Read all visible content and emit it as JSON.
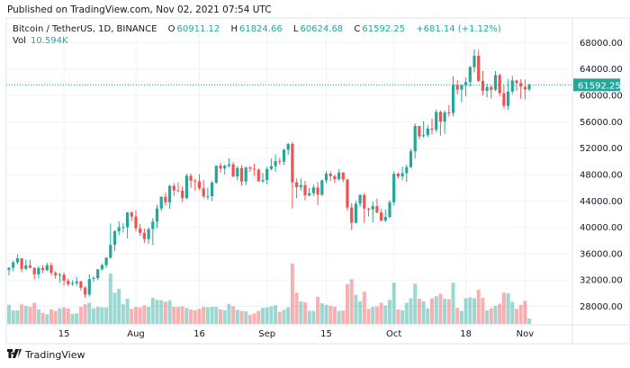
{
  "published": "Published on TradingView.com, Nov 02, 2021 07:54 UTC",
  "legend": {
    "symbol": "Bitcoin / TetherUS, 1D, BINANCE",
    "open_label": "O",
    "open": "60911.12",
    "high_label": "H",
    "high": "61824.66",
    "low_label": "L",
    "low": "60624.68",
    "close_label": "C",
    "close": "61592.25",
    "change": "+681.14 (+1.12%)",
    "vol_label": "Vol",
    "vol": "10.594K"
  },
  "last_price_label": "61592.25",
  "footer": {
    "logo_mark": "TV",
    "brand": "TradingView"
  },
  "colors": {
    "up": "#26a69a",
    "down": "#ef5350",
    "grid": "#f0f3fa",
    "text": "#131722"
  },
  "chart_data": {
    "type": "candlestick",
    "title": "Bitcoin / TetherUS, 1D, BINANCE",
    "ylim": [
      26000,
      70000
    ],
    "y_ticks": [
      "68000.00",
      "64000.00",
      "60000.00",
      "56000.00",
      "52000.00",
      "48000.00",
      "44000.00",
      "40000.00",
      "36000.00",
      "32000.00",
      "28000.00"
    ],
    "x_ticks": [
      {
        "label": "15",
        "date": "2021-07-15"
      },
      {
        "label": "Aug",
        "date": "2021-08-01"
      },
      {
        "label": "16",
        "date": "2021-08-16"
      },
      {
        "label": "Sep",
        "date": "2021-09-01"
      },
      {
        "label": "15",
        "date": "2021-09-15"
      },
      {
        "label": "Oct",
        "date": "2021-10-01"
      },
      {
        "label": "18",
        "date": "2021-10-18"
      },
      {
        "label": "Nov",
        "date": "2021-11-01"
      }
    ],
    "grid": true,
    "last_price": 61592.25,
    "columns": [
      "date",
      "open",
      "high",
      "low",
      "close",
      "volume_k"
    ],
    "ohlcv": [
      [
        "2021-07-02",
        33541,
        33963,
        32700,
        33855,
        38
      ],
      [
        "2021-07-03",
        33855,
        34950,
        33320,
        34688,
        27
      ],
      [
        "2021-07-04",
        34688,
        35950,
        34350,
        35287,
        27
      ],
      [
        "2021-07-05",
        35287,
        35290,
        33170,
        33690,
        39
      ],
      [
        "2021-07-06",
        33690,
        35120,
        33530,
        34220,
        36
      ],
      [
        "2021-07-07",
        34220,
        35060,
        33770,
        33862,
        34
      ],
      [
        "2021-07-08",
        33862,
        33920,
        32100,
        32875,
        42
      ],
      [
        "2021-07-09",
        32875,
        34100,
        32260,
        33815,
        29
      ],
      [
        "2021-07-10",
        33815,
        34250,
        33000,
        33502,
        22
      ],
      [
        "2021-07-11",
        33502,
        34600,
        33330,
        34259,
        19
      ],
      [
        "2021-07-12",
        34259,
        34680,
        32660,
        33086,
        29
      ],
      [
        "2021-07-13",
        33086,
        33340,
        32200,
        32729,
        26
      ],
      [
        "2021-07-14",
        32729,
        33100,
        31600,
        32820,
        31
      ],
      [
        "2021-07-15",
        32820,
        33180,
        31130,
        31880,
        33
      ],
      [
        "2021-07-16",
        31880,
        32250,
        31020,
        31383,
        31
      ],
      [
        "2021-07-17",
        31383,
        31950,
        31160,
        31520,
        20
      ],
      [
        "2021-07-18",
        31520,
        32440,
        31100,
        31778,
        21
      ],
      [
        "2021-07-19",
        31778,
        31900,
        30400,
        30839,
        34
      ],
      [
        "2021-07-20",
        30839,
        31060,
        29278,
        29790,
        39
      ],
      [
        "2021-07-21",
        29790,
        32860,
        29480,
        32144,
        42
      ],
      [
        "2021-07-22",
        32144,
        32580,
        31710,
        32287,
        31
      ],
      [
        "2021-07-23",
        32287,
        33650,
        31950,
        33634,
        34
      ],
      [
        "2021-07-24",
        33634,
        34500,
        33400,
        34258,
        33
      ],
      [
        "2021-07-25",
        34258,
        35400,
        33860,
        35404,
        33
      ],
      [
        "2021-07-26",
        35404,
        40550,
        35200,
        37337,
        100
      ],
      [
        "2021-07-27",
        37337,
        39540,
        36400,
        39406,
        62
      ],
      [
        "2021-07-28",
        39406,
        40900,
        38800,
        39995,
        70
      ],
      [
        "2021-07-29",
        39995,
        40640,
        39200,
        40008,
        39
      ],
      [
        "2021-07-30",
        40008,
        42320,
        38320,
        42235,
        50
      ],
      [
        "2021-07-31",
        42235,
        42420,
        41000,
        41626,
        30
      ],
      [
        "2021-08-01",
        41626,
        42600,
        39420,
        39846,
        34
      ],
      [
        "2021-08-02",
        39846,
        40480,
        38700,
        39147,
        33
      ],
      [
        "2021-08-03",
        39147,
        39800,
        37640,
        38207,
        37
      ],
      [
        "2021-08-04",
        38207,
        39950,
        37500,
        39723,
        34
      ],
      [
        "2021-08-05",
        39723,
        41400,
        37300,
        40867,
        52
      ],
      [
        "2021-08-06",
        40867,
        43400,
        39850,
        42848,
        48
      ],
      [
        "2021-08-07",
        42848,
        44700,
        42450,
        44614,
        47
      ],
      [
        "2021-08-08",
        44614,
        45300,
        43300,
        43792,
        44
      ],
      [
        "2021-08-09",
        43792,
        46450,
        42800,
        46285,
        47
      ],
      [
        "2021-08-10",
        46285,
        46700,
        44750,
        45593,
        34
      ],
      [
        "2021-08-11",
        45593,
        46800,
        45350,
        45555,
        34
      ],
      [
        "2021-08-12",
        45555,
        46220,
        43800,
        44429,
        35
      ],
      [
        "2021-08-13",
        44429,
        48150,
        44250,
        47810,
        32
      ],
      [
        "2021-08-14",
        47810,
        48150,
        45970,
        47068,
        29
      ],
      [
        "2021-08-15",
        47068,
        47390,
        45550,
        46974,
        27
      ],
      [
        "2021-08-16",
        46974,
        48050,
        45650,
        45901,
        30
      ],
      [
        "2021-08-17",
        45901,
        47160,
        44380,
        44696,
        34
      ],
      [
        "2021-08-18",
        44696,
        46000,
        44200,
        44705,
        33
      ],
      [
        "2021-08-19",
        44705,
        47030,
        43950,
        46760,
        34
      ],
      [
        "2021-08-20",
        46760,
        49380,
        46630,
        49339,
        34
      ],
      [
        "2021-08-21",
        49339,
        49760,
        48280,
        48905,
        29
      ],
      [
        "2021-08-22",
        48905,
        49500,
        48000,
        49321,
        27
      ],
      [
        "2021-08-23",
        49321,
        50500,
        49030,
        49546,
        40
      ],
      [
        "2021-08-24",
        49546,
        49880,
        47600,
        47706,
        35
      ],
      [
        "2021-08-25",
        47706,
        49300,
        47100,
        48960,
        28
      ],
      [
        "2021-08-26",
        48960,
        49400,
        46300,
        46942,
        26
      ],
      [
        "2021-08-27",
        46942,
        49200,
        46400,
        49058,
        25
      ],
      [
        "2021-08-28",
        49058,
        49300,
        48400,
        48897,
        18
      ],
      [
        "2021-08-29",
        48897,
        49650,
        47800,
        48767,
        21
      ],
      [
        "2021-08-30",
        48767,
        48900,
        46900,
        46970,
        26
      ],
      [
        "2021-08-31",
        46970,
        48250,
        46700,
        47166,
        32
      ],
      [
        "2021-09-01",
        47166,
        49150,
        46500,
        48847,
        33
      ],
      [
        "2021-09-02",
        48847,
        50400,
        48600,
        49270,
        35
      ],
      [
        "2021-09-03",
        49270,
        51050,
        48400,
        50025,
        37
      ],
      [
        "2021-09-04",
        50025,
        50550,
        49500,
        49944,
        24
      ],
      [
        "2021-09-05",
        49944,
        51900,
        49450,
        51753,
        28
      ],
      [
        "2021-09-06",
        51753,
        52800,
        50970,
        52633,
        33
      ],
      [
        "2021-09-07",
        52633,
        52950,
        42843,
        46811,
        120
      ],
      [
        "2021-09-08",
        46811,
        47400,
        44400,
        46091,
        62
      ],
      [
        "2021-09-09",
        46091,
        47400,
        45500,
        46391,
        45
      ],
      [
        "2021-09-10",
        46391,
        47050,
        44100,
        44843,
        43
      ],
      [
        "2021-09-11",
        44843,
        45990,
        44700,
        45161,
        26
      ],
      [
        "2021-09-12",
        45161,
        46460,
        44750,
        46026,
        26
      ],
      [
        "2021-09-13",
        46026,
        46850,
        43370,
        44940,
        54
      ],
      [
        "2021-09-14",
        44940,
        47250,
        44700,
        47111,
        41
      ],
      [
        "2021-09-15",
        47111,
        48480,
        46700,
        48121,
        38
      ],
      [
        "2021-09-16",
        48121,
        48500,
        47000,
        47737,
        36
      ],
      [
        "2021-09-17",
        47737,
        48000,
        46750,
        47299,
        34
      ],
      [
        "2021-09-18",
        47299,
        48800,
        47050,
        48292,
        26
      ],
      [
        "2021-09-19",
        48292,
        48370,
        46850,
        47241,
        27
      ],
      [
        "2021-09-20",
        47241,
        47350,
        42500,
        42996,
        79
      ],
      [
        "2021-09-21",
        42996,
        43650,
        39600,
        40693,
        89
      ],
      [
        "2021-09-22",
        40693,
        44000,
        40570,
        43574,
        58
      ],
      [
        "2021-09-23",
        43574,
        44980,
        43100,
        44895,
        45
      ],
      [
        "2021-09-24",
        44895,
        45200,
        40680,
        42839,
        64
      ],
      [
        "2021-09-25",
        42839,
        42970,
        41650,
        42716,
        30
      ],
      [
        "2021-09-26",
        42716,
        43930,
        40750,
        43208,
        34
      ],
      [
        "2021-09-27",
        43208,
        44350,
        42100,
        42235,
        35
      ],
      [
        "2021-09-28",
        42235,
        42780,
        40900,
        41034,
        42
      ],
      [
        "2021-09-29",
        41034,
        42700,
        40750,
        41564,
        37
      ],
      [
        "2021-09-30",
        41564,
        44100,
        41400,
        43790,
        48
      ],
      [
        "2021-10-01",
        43790,
        48500,
        43300,
        48116,
        82
      ],
      [
        "2021-10-02",
        48116,
        48350,
        47400,
        47711,
        29
      ],
      [
        "2021-10-03",
        47711,
        49200,
        47100,
        48199,
        27
      ],
      [
        "2021-10-04",
        48199,
        49500,
        46900,
        49112,
        42
      ],
      [
        "2021-10-05",
        49112,
        51880,
        49000,
        51514,
        51
      ],
      [
        "2021-10-06",
        51514,
        55750,
        50380,
        55361,
        80
      ],
      [
        "2021-10-07",
        55361,
        55330,
        53350,
        53805,
        50
      ],
      [
        "2021-10-08",
        53805,
        56100,
        53600,
        53967,
        45
      ],
      [
        "2021-10-09",
        53967,
        55480,
        53650,
        54968,
        31
      ],
      [
        "2021-10-10",
        54968,
        56500,
        54100,
        54771,
        51
      ],
      [
        "2021-10-11",
        54771,
        57840,
        54420,
        57484,
        55
      ],
      [
        "2021-10-12",
        57484,
        57700,
        53880,
        56041,
        60
      ],
      [
        "2021-10-13",
        56041,
        57700,
        54160,
        57401,
        50
      ],
      [
        "2021-10-14",
        57401,
        58550,
        56800,
        57321,
        49
      ],
      [
        "2021-10-15",
        57321,
        62900,
        56830,
        61593,
        82
      ],
      [
        "2021-10-16",
        61593,
        62350,
        60150,
        60875,
        32
      ],
      [
        "2021-10-17",
        60875,
        61700,
        58960,
        61528,
        26
      ],
      [
        "2021-10-18",
        61528,
        62700,
        59850,
        62009,
        51
      ],
      [
        "2021-10-19",
        62009,
        64500,
        61320,
        64280,
        53
      ],
      [
        "2021-10-20",
        64280,
        67000,
        63480,
        66002,
        51
      ],
      [
        "2021-10-21",
        66002,
        66900,
        62000,
        62193,
        68
      ],
      [
        "2021-10-22",
        62193,
        63730,
        60000,
        60688,
        52
      ],
      [
        "2021-10-23",
        60688,
        61750,
        59700,
        61286,
        27
      ],
      [
        "2021-10-24",
        61286,
        61500,
        59500,
        60852,
        31
      ],
      [
        "2021-10-25",
        60852,
        63700,
        60650,
        63078,
        36
      ],
      [
        "2021-10-26",
        63078,
        63300,
        59820,
        60328,
        40
      ],
      [
        "2021-10-27",
        60328,
        61500,
        58000,
        58413,
        62
      ],
      [
        "2021-10-28",
        58413,
        62500,
        57800,
        60575,
        61
      ],
      [
        "2021-10-29",
        60575,
        62950,
        60170,
        62253,
        44
      ],
      [
        "2021-10-30",
        62253,
        62370,
        60700,
        61859,
        30
      ],
      [
        "2021-10-31",
        61859,
        62450,
        59500,
        61300,
        38
      ],
      [
        "2021-11-01",
        61300,
        62400,
        59400,
        60911.12,
        46
      ],
      [
        "2021-11-02",
        60911.12,
        61824.66,
        60624.68,
        61592.25,
        10.594
      ]
    ]
  }
}
